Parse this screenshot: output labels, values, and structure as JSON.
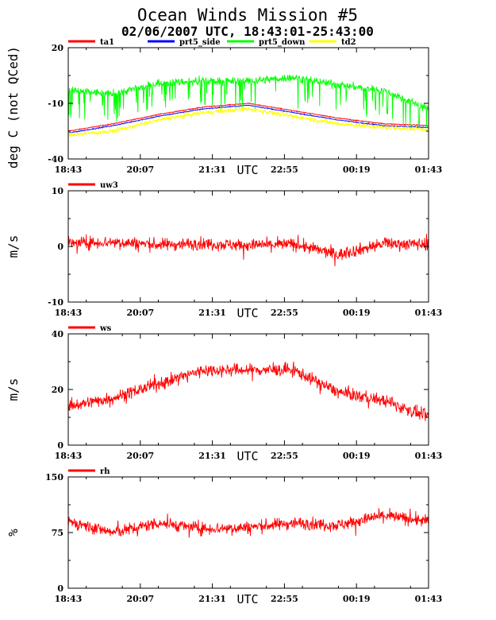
{
  "title": "Ocean Winds Mission #5",
  "subtitle": "02/06/2007  UTC, 18:43:01-25:43:00",
  "time_unit": "UTC",
  "time_ticks": [
    "18:43",
    "20:07",
    "21:31",
    "22:55",
    "00:19",
    "01:43"
  ],
  "colors": {
    "red": "#ff0000",
    "blue": "#0000ff",
    "green": "#00ff00",
    "yellow": "#ffff00"
  },
  "chart_data": [
    {
      "type": "line",
      "ylabel": "deg C (not QCed)",
      "ylim": [
        -40,
        20
      ],
      "y_ticks": [
        "20",
        "-10",
        "-40"
      ],
      "legend_placement": "top",
      "grid": false,
      "series": [
        {
          "name": "ta1",
          "color": "#ff0000",
          "values_approx": [
            -25,
            -21,
            -16,
            -12,
            -10,
            -14,
            -18,
            -21,
            -22
          ]
        },
        {
          "name": "prt5_side",
          "color": "#0000ff",
          "values_approx": [
            -26,
            -22,
            -17,
            -13,
            -11,
            -15,
            -19,
            -22,
            -23
          ]
        },
        {
          "name": "prt5_down",
          "color": "#00ff00",
          "values_approx": [
            -3,
            -5,
            1,
            2,
            2,
            4,
            0,
            -3,
            -13
          ]
        },
        {
          "name": "td2",
          "color": "#ffff00",
          "values_approx": [
            -27,
            -25,
            -19,
            -15,
            -13,
            -17,
            -21,
            -23,
            -24
          ]
        }
      ]
    },
    {
      "type": "line",
      "ylabel": "m/s",
      "ylim": [
        -10,
        10
      ],
      "y_ticks": [
        "10",
        "0",
        "-10"
      ],
      "legend_placement": "top",
      "grid": false,
      "series": [
        {
          "name": "uw3",
          "color": "#ff0000",
          "values_approx": [
            0.5,
            0.8,
            0.3,
            0.5,
            0.2,
            0.4,
            -1.5,
            0.5,
            0.4
          ]
        }
      ]
    },
    {
      "type": "line",
      "ylabel": "m/s",
      "ylim": [
        0,
        40
      ],
      "y_ticks": [
        "40",
        "20",
        "0"
      ],
      "legend_placement": "top",
      "grid": false,
      "series": [
        {
          "name": "ws",
          "color": "#ff0000",
          "values_approx": [
            14,
            17,
            22,
            27,
            27,
            27,
            19,
            16,
            10
          ]
        }
      ]
    },
    {
      "type": "line",
      "ylabel": "%",
      "ylim": [
        0,
        150
      ],
      "y_ticks": [
        "150",
        "75",
        "0"
      ],
      "legend_placement": "top",
      "grid": false,
      "series": [
        {
          "name": "rh",
          "color": "#ff0000",
          "values_approx": [
            90,
            75,
            88,
            80,
            82,
            88,
            85,
            98,
            90
          ]
        }
      ]
    }
  ]
}
